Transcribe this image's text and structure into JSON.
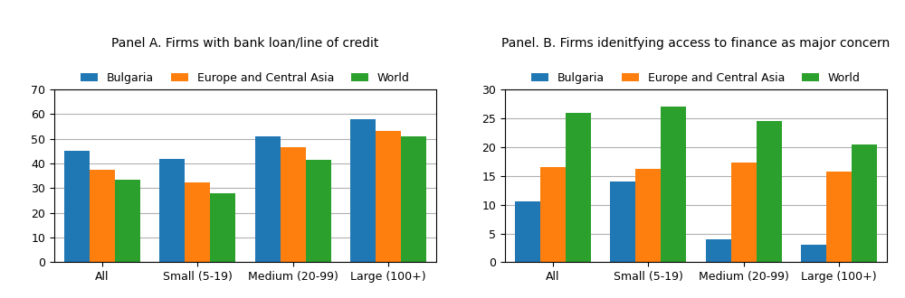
{
  "chart_data": [
    {
      "type": "bar",
      "title": "Panel A. Firms with bank loan/line of credit",
      "categories": [
        "All",
        "Small (5-19)",
        "Medium (20-99)",
        "Large (100+)"
      ],
      "series": [
        {
          "name": "Bulgaria",
          "values": [
            45,
            42,
            51,
            58
          ]
        },
        {
          "name": "Europe and Central Asia",
          "values": [
            37.5,
            32.5,
            46.5,
            53
          ]
        },
        {
          "name": "World",
          "values": [
            33.5,
            28,
            41.5,
            51
          ]
        }
      ],
      "ylim": [
        0,
        70
      ],
      "yticks": [
        0,
        10,
        20,
        30,
        40,
        50,
        60,
        70
      ],
      "grid": true,
      "legend": "upper center"
    },
    {
      "type": "bar",
      "title": "Panel. B. Firms idenitfying access to finance as major concern",
      "categories": [
        "All",
        "Small (5-19)",
        "Medium (20-99)",
        "Large (100+)"
      ],
      "series": [
        {
          "name": "Bulgaria",
          "values": [
            10.5,
            14,
            4,
            3
          ]
        },
        {
          "name": "Europe and Central Asia",
          "values": [
            16.5,
            16.2,
            17.3,
            15.7
          ]
        },
        {
          "name": "World",
          "values": [
            26,
            27,
            24.5,
            20.5
          ]
        }
      ],
      "ylim": [
        0,
        30
      ],
      "yticks": [
        0,
        5,
        10,
        15,
        20,
        25,
        30
      ],
      "grid": true,
      "legend": "upper center"
    }
  ]
}
